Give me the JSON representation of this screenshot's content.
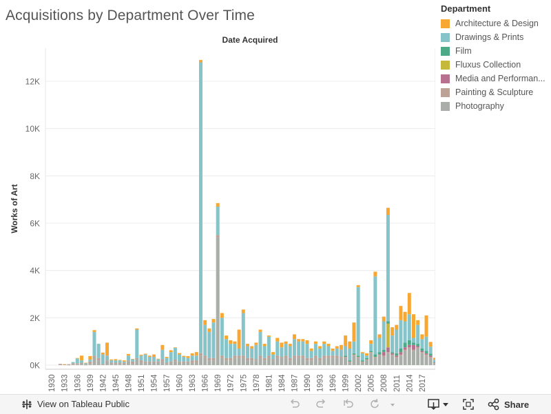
{
  "header": {
    "title": "Acquisitions by Department Over Time"
  },
  "legend": {
    "title": "Department",
    "items": [
      {
        "label": "Architecture & Design",
        "color": "#f8a832"
      },
      {
        "label": "Drawings & Prints",
        "color": "#86c4ca"
      },
      {
        "label": "Film",
        "color": "#4daa87"
      },
      {
        "label": "Fluxus Collection",
        "color": "#c4b93a"
      },
      {
        "label": "Media and Performan...",
        "color": "#b8708f"
      },
      {
        "label": "Painting & Sculpture",
        "color": "#bca297"
      },
      {
        "label": "Photography",
        "color": "#a9aea8"
      }
    ]
  },
  "footer": {
    "view_label": "View on Tableau Public",
    "share_label": "Share"
  },
  "chart_data": {
    "type": "bar",
    "stacked": true,
    "column_header": "Date Acquired",
    "ylabel": "Works of Art",
    "ylim": [
      0,
      13000
    ],
    "yticks": [
      0,
      2000,
      4000,
      6000,
      8000,
      10000,
      12000
    ],
    "ytick_labels": [
      "0K",
      "2K",
      "4K",
      "6K",
      "8K",
      "10K",
      "12K"
    ],
    "xtick_labels": [
      "1930",
      "1933",
      "1936",
      "1939",
      "1942",
      "1945",
      "1948",
      "1951",
      "1954",
      "1957",
      "1960",
      "1963",
      "1966",
      "1969",
      "1972",
      "1975",
      "1978",
      "1981",
      "1984",
      "1987",
      "1990",
      "1993",
      "1996",
      "1999",
      "2002",
      "2005",
      "2008",
      "2011",
      "2014",
      "2017"
    ],
    "x": [
      1929,
      1930,
      1931,
      1932,
      1933,
      1934,
      1935,
      1936,
      1937,
      1938,
      1939,
      1940,
      1941,
      1942,
      1943,
      1944,
      1945,
      1946,
      1947,
      1948,
      1949,
      1950,
      1951,
      1952,
      1953,
      1954,
      1955,
      1956,
      1957,
      1958,
      1959,
      1960,
      1961,
      1962,
      1963,
      1964,
      1965,
      1966,
      1967,
      1968,
      1969,
      1970,
      1971,
      1972,
      1973,
      1974,
      1975,
      1976,
      1977,
      1978,
      1979,
      1980,
      1981,
      1982,
      1983,
      1984,
      1985,
      1986,
      1987,
      1988,
      1989,
      1990,
      1991,
      1992,
      1993,
      1994,
      1995,
      1996,
      1997,
      1998,
      1999,
      2000,
      2001,
      2002,
      2003,
      2004,
      2005,
      2006,
      2007,
      2008,
      2009,
      2010,
      2011,
      2012,
      2013,
      2014,
      2015,
      2016,
      2017,
      2018,
      2019,
      2020
    ],
    "series": [
      {
        "name": "Architecture & Design",
        "values": [
          0,
          0,
          0,
          0,
          10,
          0,
          0,
          20,
          200,
          10,
          150,
          80,
          0,
          80,
          550,
          40,
          50,
          20,
          50,
          70,
          10,
          50,
          40,
          30,
          50,
          100,
          20,
          200,
          50,
          80,
          20,
          60,
          40,
          80,
          100,
          150,
          100,
          200,
          150,
          150,
          150,
          200,
          150,
          150,
          100,
          800,
          150,
          100,
          100,
          100,
          100,
          100,
          50,
          100,
          150,
          200,
          100,
          100,
          200,
          100,
          100,
          150,
          100,
          100,
          100,
          100,
          100,
          100,
          100,
          200,
          450,
          300,
          800,
          80,
          50,
          100,
          150,
          200,
          150,
          200,
          300,
          350,
          200,
          600,
          400,
          900,
          1000,
          200,
          200,
          900,
          200,
          80
        ]
      },
      {
        "name": "Drawings & Prints",
        "values": [
          0,
          0,
          0,
          0,
          0,
          0,
          50,
          200,
          100,
          50,
          80,
          1000,
          600,
          400,
          200,
          100,
          100,
          100,
          50,
          200,
          100,
          1200,
          200,
          300,
          200,
          200,
          100,
          400,
          200,
          400,
          500,
          300,
          200,
          150,
          200,
          200,
          12300,
          1300,
          1100,
          1500,
          1200,
          1600,
          800,
          600,
          500,
          300,
          1800,
          500,
          400,
          600,
          1000,
          500,
          800,
          200,
          600,
          400,
          500,
          500,
          700,
          600,
          600,
          600,
          300,
          500,
          400,
          500,
          400,
          200,
          300,
          300,
          400,
          500,
          500,
          2900,
          300,
          100,
          300,
          3300,
          600,
          1200,
          4500,
          700,
          1000,
          1200,
          900,
          1100,
          200,
          800,
          400,
          600,
          300,
          100
        ]
      },
      {
        "name": "Film",
        "values": [
          0,
          0,
          0,
          0,
          0,
          0,
          0,
          0,
          0,
          0,
          0,
          0,
          0,
          0,
          0,
          0,
          0,
          0,
          0,
          0,
          0,
          0,
          0,
          0,
          0,
          0,
          0,
          0,
          0,
          0,
          0,
          0,
          0,
          0,
          0,
          0,
          0,
          0,
          0,
          0,
          0,
          0,
          0,
          0,
          0,
          0,
          0,
          0,
          0,
          0,
          0,
          0,
          0,
          0,
          0,
          0,
          0,
          0,
          0,
          0,
          0,
          0,
          0,
          0,
          0,
          0,
          0,
          0,
          0,
          0,
          50,
          50,
          50,
          50,
          50,
          50,
          50,
          100,
          100,
          100,
          100,
          50,
          100,
          150,
          200,
          200,
          100,
          100,
          100,
          100,
          80,
          20
        ]
      },
      {
        "name": "Fluxus Collection",
        "values": [
          0,
          0,
          0,
          0,
          0,
          0,
          0,
          0,
          0,
          0,
          0,
          0,
          0,
          0,
          0,
          0,
          0,
          0,
          0,
          0,
          0,
          0,
          0,
          0,
          0,
          0,
          0,
          0,
          0,
          0,
          0,
          0,
          0,
          0,
          0,
          0,
          0,
          0,
          0,
          0,
          0,
          0,
          0,
          0,
          0,
          0,
          0,
          0,
          0,
          0,
          0,
          0,
          0,
          0,
          0,
          0,
          0,
          0,
          0,
          0,
          0,
          0,
          0,
          0,
          0,
          0,
          0,
          0,
          0,
          0,
          0,
          0,
          0,
          0,
          0,
          0,
          0,
          0,
          0,
          0,
          1000,
          0,
          0,
          0,
          0,
          0,
          0,
          0,
          0,
          0,
          0,
          0
        ]
      },
      {
        "name": "Media and Performance",
        "values": [
          0,
          0,
          0,
          0,
          0,
          0,
          0,
          0,
          0,
          0,
          0,
          0,
          0,
          0,
          0,
          0,
          0,
          0,
          0,
          0,
          0,
          0,
          0,
          0,
          0,
          0,
          0,
          0,
          0,
          0,
          0,
          0,
          0,
          0,
          0,
          0,
          0,
          0,
          0,
          0,
          0,
          0,
          0,
          0,
          0,
          0,
          0,
          0,
          0,
          0,
          0,
          0,
          0,
          0,
          0,
          0,
          0,
          0,
          0,
          0,
          0,
          0,
          0,
          0,
          0,
          0,
          0,
          0,
          0,
          0,
          0,
          0,
          0,
          0,
          0,
          0,
          0,
          0,
          0,
          150,
          200,
          50,
          50,
          100,
          100,
          100,
          200,
          50,
          50,
          50,
          50,
          20
        ]
      },
      {
        "name": "Painting & Sculpture",
        "values": [
          0,
          0,
          0,
          50,
          30,
          30,
          60,
          30,
          50,
          30,
          100,
          50,
          100,
          50,
          50,
          50,
          50,
          50,
          50,
          50,
          100,
          50,
          100,
          50,
          50,
          50,
          50,
          100,
          50,
          50,
          80,
          50,
          50,
          50,
          100,
          100,
          100,
          100,
          100,
          100,
          100,
          100,
          100,
          100,
          100,
          100,
          100,
          100,
          100,
          50,
          100,
          100,
          100,
          50,
          100,
          50,
          100,
          100,
          100,
          100,
          100,
          100,
          100,
          100,
          100,
          100,
          100,
          100,
          100,
          50,
          50,
          50,
          50,
          50,
          50,
          50,
          50,
          50,
          50,
          50,
          50,
          50,
          50,
          50,
          50,
          50,
          50,
          50,
          50,
          50,
          50,
          20
        ]
      },
      {
        "name": "Photography",
        "values": [
          0,
          0,
          0,
          0,
          0,
          10,
          20,
          50,
          50,
          10,
          50,
          350,
          200,
          0,
          150,
          50,
          50,
          50,
          50,
          150,
          50,
          250,
          100,
          100,
          100,
          100,
          100,
          150,
          50,
          100,
          150,
          100,
          100,
          100,
          100,
          100,
          400,
          300,
          200,
          200,
          5400,
          300,
          200,
          200,
          300,
          300,
          300,
          200,
          200,
          200,
          300,
          200,
          300,
          200,
          300,
          300,
          300,
          200,
          300,
          300,
          300,
          200,
          200,
          300,
          200,
          300,
          300,
          300,
          300,
          300,
          300,
          100,
          400,
          300,
          100,
          200,
          500,
          300,
          400,
          350,
          500,
          400,
          300,
          400,
          600,
          700,
          600,
          700,
          500,
          400,
          300,
          70
        ]
      }
    ]
  }
}
